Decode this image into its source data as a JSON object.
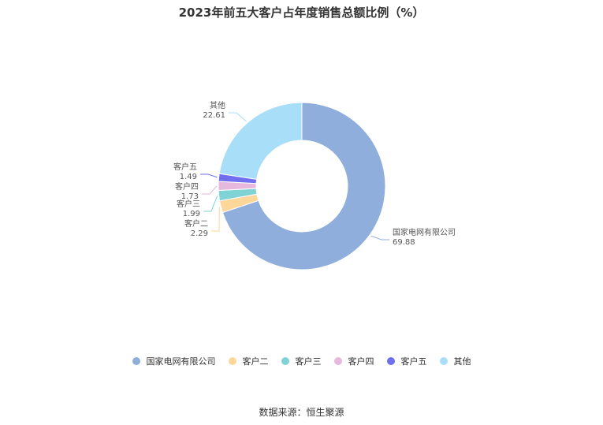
{
  "title": "2023年前五大客户占年度销售总额比例（%）",
  "source": "数据来源：恒生聚源",
  "chart_data": {
    "type": "pie",
    "variant": "donut",
    "title": "2023年前五大客户占年度销售总额比例（%）",
    "legend_position": "bottom",
    "series": [
      {
        "name": "国家电网有限公司",
        "value": 69.88,
        "color": "#8faedc"
      },
      {
        "name": "客户二",
        "value": 2.29,
        "color": "#fdd79a"
      },
      {
        "name": "客户三",
        "value": 1.99,
        "color": "#7fd3d5"
      },
      {
        "name": "客户四",
        "value": 1.73,
        "color": "#e6b8dd"
      },
      {
        "name": "客户五",
        "value": 1.49,
        "color": "#6f6ff0"
      },
      {
        "name": "其他",
        "value": 22.61,
        "color": "#a8def8"
      }
    ]
  }
}
